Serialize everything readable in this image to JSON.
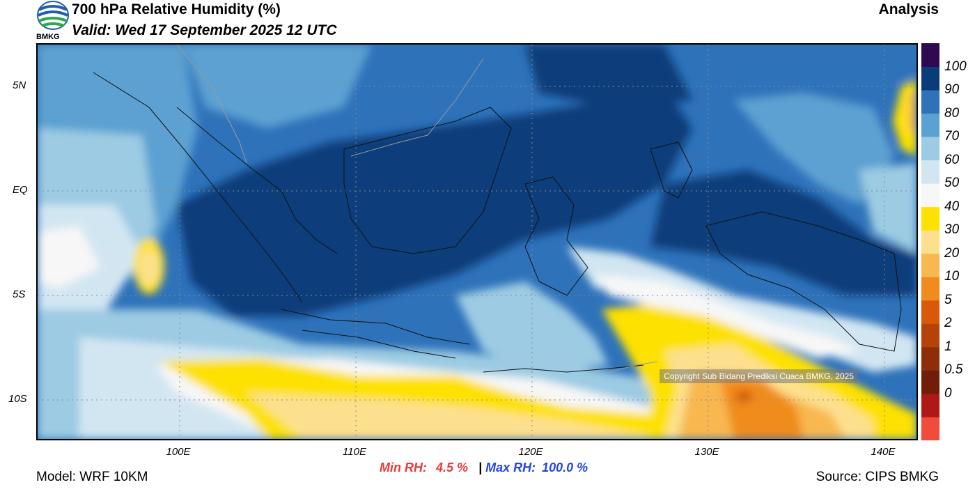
{
  "header": {
    "title": "700 hPa Relative Humidity (%)",
    "valid": "Valid: Wed 17 September 2025 12 UTC",
    "product": "Analysis",
    "logo_text": "BMKG"
  },
  "map": {
    "lat_labels": [
      "5N",
      "EQ",
      "5S",
      "10S"
    ],
    "lon_labels": [
      "100E",
      "110E",
      "120E",
      "130E",
      "140E"
    ],
    "copyright": "Copyright Sub Bidang Prediksi Cuaca BMKG, 2025"
  },
  "colorbar": {
    "labels": [
      "100",
      "90",
      "80",
      "70",
      "60",
      "50",
      "40",
      "30",
      "20",
      "10",
      "5",
      "2",
      "1",
      "0.5",
      "0"
    ],
    "colors": [
      "#f04b3c",
      "#b01818",
      "#701e0a",
      "#8e2e08",
      "#b54208",
      "#d85a08",
      "#f08c1e",
      "#f8b850",
      "#fde08e",
      "#fde100",
      "#f7f7f7",
      "#d2e6f2",
      "#9ccbe3",
      "#5ba1d1",
      "#2e72ba",
      "#0b3c7a",
      "#2e0a52"
    ]
  },
  "stats": {
    "min_label": "Min RH:",
    "min_value": "4.5 %",
    "separator": "|",
    "max_label": "Max RH:",
    "max_value": "100.0 %"
  },
  "footer": {
    "model": "Model: WRF 10KM",
    "source": "Source: CIPS BMKG"
  }
}
